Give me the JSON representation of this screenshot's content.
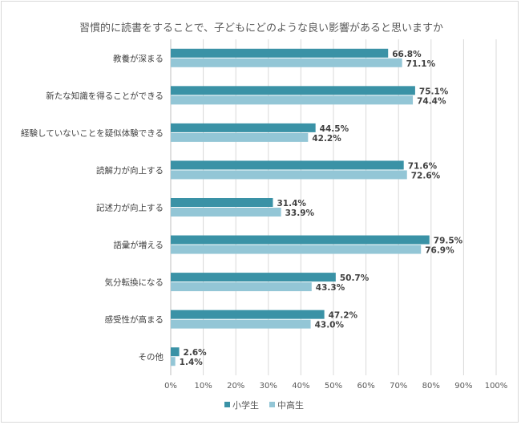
{
  "chart_data": {
    "type": "bar",
    "orientation": "horizontal",
    "title": "習慣的に読書をすることで、子どもにどのような良い影響があると思いますか",
    "categories": [
      "教養が深まる",
      "新たな知識を得ることができる",
      "経験していないことを疑似体験できる",
      "読解力が向上する",
      "記述力が向上する",
      "語彙が増える",
      "気分転換になる",
      "感受性が高まる",
      "その他"
    ],
    "series": [
      {
        "name": "小学生",
        "color": "#3a92a6",
        "values": [
          66.8,
          75.1,
          44.5,
          71.6,
          31.4,
          79.5,
          50.7,
          47.2,
          2.6
        ],
        "labels": [
          "66.8%",
          "75.1%",
          "44.5%",
          "71.6%",
          "31.4%",
          "79.5%",
          "50.7%",
          "47.2%",
          "2.6%"
        ]
      },
      {
        "name": "中高生",
        "color": "#93c6d6",
        "values": [
          71.1,
          74.4,
          42.2,
          72.6,
          33.9,
          76.9,
          43.3,
          43.0,
          1.4
        ],
        "labels": [
          "71.1%",
          "74.4%",
          "42.2%",
          "72.6%",
          "33.9%",
          "76.9%",
          "43.3%",
          "43.0%",
          "1.4%"
        ]
      }
    ],
    "xlim": [
      0,
      100
    ],
    "xticks": [
      0,
      10,
      20,
      30,
      40,
      50,
      60,
      70,
      80,
      90,
      100
    ],
    "xtick_labels": [
      "0%",
      "10%",
      "20%",
      "30%",
      "40%",
      "50%",
      "60%",
      "70%",
      "80%",
      "90%",
      "100%"
    ],
    "grid": true,
    "legend_position": "bottom",
    "gridline_color": "#d9d9d9",
    "text_color": "#404040"
  }
}
